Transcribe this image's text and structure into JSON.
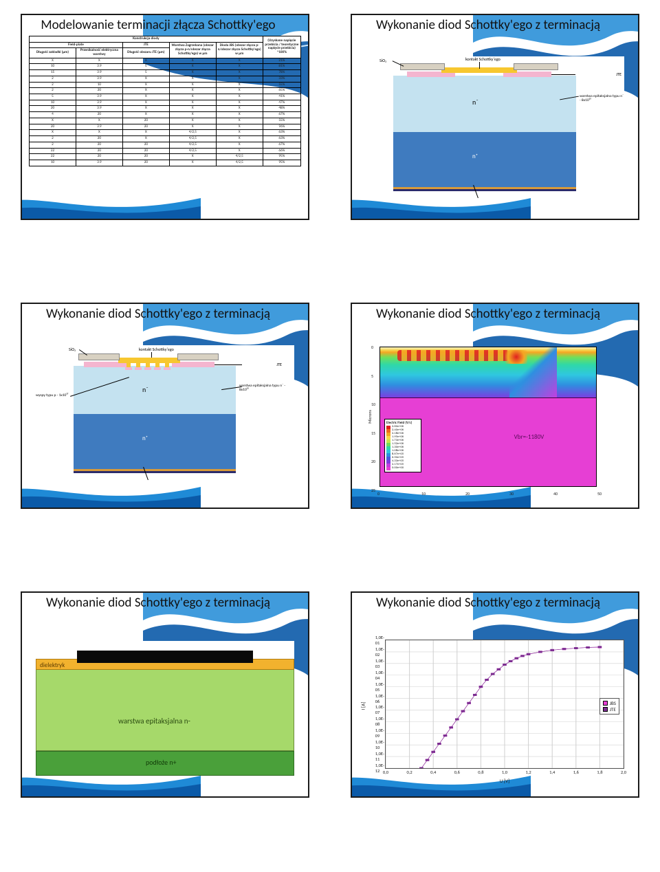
{
  "slides": {
    "s1": {
      "title": "Modelowanie terminacji złącza Schottky'ego",
      "table": {
        "group_header": "Konstrukcja diody",
        "result_header": "(Uzyskane napięcie przebicia / teoretyczne napięcie przebicia) *100%",
        "sub_groups": {
          "fp": "Field-plate",
          "jte": "JTE"
        },
        "columns": [
          "Długość zakładki (µm)",
          "Przenikalność elektryczna warstwy",
          "Długość obszaru JTE (µm)",
          "Warstwa Zagrzebana (obszar złącza p-n/obszar złącza Schottky'ego) w µm",
          "Dioda JBS (obszar złącza p-n/obszar złącza Schottky'ego) w µm"
        ],
        "rows": [
          [
            "X",
            "X",
            "X",
            "X",
            "X",
            "21%"
          ],
          [
            "10",
            "3.9",
            "5",
            "X",
            "X",
            "81%"
          ],
          [
            "15",
            "3.9",
            "5",
            "X",
            "X",
            "78%"
          ],
          [
            "2",
            "3.9",
            "X",
            "X",
            "X",
            "33%"
          ],
          [
            "2",
            "10",
            "X",
            "X",
            "X",
            "55%"
          ],
          [
            "2",
            "20",
            "X",
            "X",
            "X",
            "65%"
          ],
          [
            "5",
            "3.9",
            "X",
            "X",
            "X",
            "41%"
          ],
          [
            "10",
            "3.9",
            "X",
            "X",
            "X",
            "47%"
          ],
          [
            "20",
            "3.9",
            "X",
            "X",
            "X",
            "48%"
          ],
          [
            "4",
            "20",
            "X",
            "X",
            "X",
            "67%"
          ],
          [
            "X",
            "X",
            "20",
            "X",
            "X",
            "55%"
          ],
          [
            "20",
            "3.9",
            "20",
            "X",
            "X",
            "96%"
          ],
          [
            "X",
            "X",
            "X",
            "4/2,5",
            "X",
            "63%"
          ],
          [
            "2",
            "20",
            "X",
            "4/2,5",
            "X",
            "63%"
          ],
          [
            "2",
            "20",
            "20",
            "4/2,5",
            "X",
            "67%"
          ],
          [
            "22",
            "20",
            "20",
            "4/2,5",
            "X",
            "66%"
          ],
          [
            "22",
            "20",
            "20",
            "X",
            "4/2,5",
            "95%"
          ],
          [
            "10",
            "3.9",
            "20",
            "X",
            "4/2,5",
            "95%"
          ]
        ]
      }
    },
    "s2": {
      "title": "Wykonanie diod Schottky'ego z terminacją",
      "labels": {
        "sio2": "SiO₂",
        "kontakt": "kontakt Schottky'ego",
        "jte": "JTE",
        "epi": "warstwa epitaksjalna typu n⁻ - 8x10¹⁵",
        "nminus": "n⁻",
        "nplus": "n⁺"
      },
      "colors": {
        "sio2": "#d8d1c2",
        "kontakt": "#f7c72f",
        "jte": "#f4b5cf",
        "nminus": "#c4e2f0",
        "nplus": "#3f7bbf",
        "bottom1": "#d89a3a",
        "bottom2": "#2b2b6b"
      }
    },
    "s3": {
      "title": "Wykonanie diod Schottky'ego z terminacją",
      "labels": {
        "sio2": "SiO₂",
        "kontakt": "kontakt Schottky'ego",
        "jte": "JTE",
        "epi": "warstwa epitaksjalna typu n⁻ - 8x10¹⁵",
        "wyspy": "wyspy typu p - 1x10¹⁷",
        "nminus": "n⁻",
        "nplus": "n⁺"
      }
    },
    "s4": {
      "title": "Wykonanie diod Schottky'ego z terminacją",
      "vbr": "Vbr=-1180V",
      "yaxis": "Microns",
      "xticks": [
        "0",
        "10",
        "20",
        "30",
        "40",
        "50"
      ],
      "yticks": [
        "0",
        "5",
        "10",
        "15",
        "20",
        "25"
      ],
      "legend_title": "Electric Field (V/c)",
      "legend": [
        {
          "c": "#e02020",
          "t": "2.60e+06"
        },
        {
          "c": "#f06a1a",
          "t": "2.40e+06"
        },
        {
          "c": "#f5a623",
          "t": "2.18e+06"
        },
        {
          "c": "#f8d648",
          "t": "1.95e+06"
        },
        {
          "c": "#c7e84a",
          "t": "1.73e+06"
        },
        {
          "c": "#6fe05a",
          "t": "1.52e+06"
        },
        {
          "c": "#2fd8a8",
          "t": "1.30e+06"
        },
        {
          "c": "#2fc7e0",
          "t": "1.08e+06"
        },
        {
          "c": "#2f8fe0",
          "t": "8.67e+05"
        },
        {
          "c": "#4a5ae0",
          "t": "6.50e+05"
        },
        {
          "c": "#7a3fe0",
          "t": "4.33e+05"
        },
        {
          "c": "#c23fe0",
          "t": "2.17e+05"
        },
        {
          "c": "#e63fd4",
          "t": "0.00e+00"
        }
      ]
    },
    "s5": {
      "title": "Wykonanie diod Schottky'ego z terminacją",
      "labels": {
        "dielektryk": "dielektryk",
        "epi": "warstwa epitaksjalna n-",
        "substrate": "podłoże n+"
      },
      "colors": {
        "metal": "#0a0a0a",
        "dielektryk": "#f2b22e",
        "epi": "#a6d96a",
        "substrate": "#4aa03a"
      }
    },
    "s6": {
      "title": "Wykonanie diod Schottky'ego z terminacją",
      "chart": {
        "type": "line-log",
        "xaxis": "U [V]",
        "yaxis": "I [A]",
        "xlim": [
          0.0,
          2.0
        ],
        "xtick_step": 0.2,
        "xticks": [
          "0,0",
          "0,2",
          "0,4",
          "0,6",
          "0,8",
          "1,0",
          "1,2",
          "1,4",
          "1,6",
          "1,8",
          "2,0"
        ],
        "ylim_exp": [
          -12,
          -1
        ],
        "yticks": [
          "1,0E-01",
          "1,0E-02",
          "1,0E-03",
          "1,0E-04",
          "1,0E-05",
          "1,0E-06",
          "1,0E-07",
          "1,0E-08",
          "1,0E-09",
          "1,0E-10",
          "1,0E-11",
          "1,0E-12"
        ],
        "grid_color": "#d0d0d0",
        "series": [
          {
            "name": "JBS",
            "color": "#e63fd4",
            "marker": "square",
            "points": [
              [
                0.3,
                -12.0
              ],
              [
                0.35,
                -11.3
              ],
              [
                0.4,
                -10.6
              ],
              [
                0.45,
                -9.9
              ],
              [
                0.5,
                -9.2
              ],
              [
                0.55,
                -8.5
              ],
              [
                0.6,
                -7.8
              ],
              [
                0.65,
                -7.1
              ],
              [
                0.7,
                -6.4
              ],
              [
                0.75,
                -5.7
              ],
              [
                0.8,
                -5.0
              ],
              [
                0.85,
                -4.4
              ],
              [
                0.9,
                -3.9
              ],
              [
                0.95,
                -3.5
              ],
              [
                1.0,
                -3.1
              ],
              [
                1.05,
                -2.8
              ],
              [
                1.1,
                -2.55
              ],
              [
                1.15,
                -2.35
              ],
              [
                1.2,
                -2.2
              ],
              [
                1.3,
                -2.0
              ],
              [
                1.4,
                -1.85
              ],
              [
                1.5,
                -1.75
              ],
              [
                1.6,
                -1.68
              ],
              [
                1.7,
                -1.62
              ],
              [
                1.8,
                -1.6
              ]
            ]
          },
          {
            "name": "JTE",
            "color": "#7b2d90",
            "marker": "square",
            "points": [
              [
                0.3,
                -12.0
              ],
              [
                0.35,
                -11.3
              ],
              [
                0.4,
                -10.6
              ],
              [
                0.45,
                -9.9
              ],
              [
                0.5,
                -9.2
              ],
              [
                0.55,
                -8.5
              ],
              [
                0.6,
                -7.8
              ],
              [
                0.65,
                -7.1
              ],
              [
                0.7,
                -6.4
              ],
              [
                0.75,
                -5.7
              ],
              [
                0.8,
                -5.0
              ],
              [
                0.85,
                -4.4
              ],
              [
                0.9,
                -3.9
              ],
              [
                0.95,
                -3.5
              ],
              [
                1.0,
                -3.1
              ],
              [
                1.05,
                -2.8
              ],
              [
                1.1,
                -2.55
              ],
              [
                1.15,
                -2.35
              ],
              [
                1.2,
                -2.2
              ],
              [
                1.3,
                -2.0
              ],
              [
                1.4,
                -1.85
              ],
              [
                1.5,
                -1.75
              ],
              [
                1.6,
                -1.68
              ],
              [
                1.7,
                -1.62
              ],
              [
                1.8,
                -1.58
              ]
            ]
          }
        ]
      }
    }
  },
  "wave_colors": {
    "dark": "#0b5aa8",
    "mid": "#1f8ad6",
    "light": "#6fc5f0"
  }
}
